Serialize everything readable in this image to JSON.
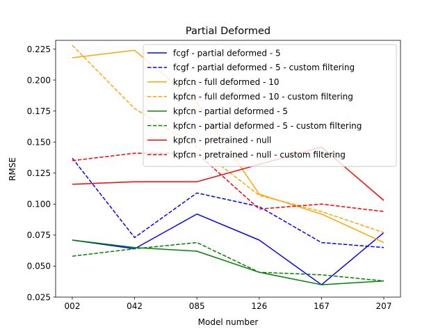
{
  "chart_data": {
    "type": "line",
    "title": "Partial Deformed",
    "xlabel": "Model number",
    "ylabel": "RMSE",
    "categories": [
      "002",
      "042",
      "085",
      "126",
      "167",
      "207"
    ],
    "ylim": [
      0.025,
      0.232
    ],
    "yticks": [
      0.025,
      0.05,
      0.075,
      0.1,
      0.125,
      0.15,
      0.175,
      0.2,
      0.225
    ],
    "ytick_labels": [
      "0.025",
      "0.050",
      "0.075",
      "0.100",
      "0.125",
      "0.150",
      "0.175",
      "0.200",
      "0.225"
    ],
    "grid": false,
    "legend_position": "top-right",
    "series": [
      {
        "name": "fcgf - partial deformed - 5",
        "color": "#0000ff",
        "style": "solid",
        "values": [
          0.071,
          0.064,
          0.092,
          0.071,
          0.035,
          0.077
        ]
      },
      {
        "name": "fcgf - partial deformed - 5 - custom filtering",
        "color": "#0000ff",
        "style": "dashed",
        "values": [
          0.137,
          0.073,
          0.109,
          0.098,
          0.069,
          0.065
        ]
      },
      {
        "name": "kpfcn - full deformed - 10",
        "color": "#ffa500",
        "style": "solid",
        "values": [
          0.218,
          0.224,
          0.182,
          0.108,
          0.092,
          0.069
        ]
      },
      {
        "name": "kpfcn - full deformed - 10 - custom filtering",
        "color": "#ffa500",
        "style": "dashed",
        "values": [
          0.228,
          0.177,
          0.146,
          0.107,
          0.094,
          0.077
        ]
      },
      {
        "name": "kpfcn - partial deformed - 5",
        "color": "#008000",
        "style": "solid",
        "values": [
          0.071,
          0.065,
          0.062,
          0.045,
          0.035,
          0.038
        ]
      },
      {
        "name": "kpfcn - partial deformed - 5 - custom filtering",
        "color": "#008000",
        "style": "dashed",
        "values": [
          0.058,
          0.064,
          0.069,
          0.045,
          0.043,
          0.038
        ]
      },
      {
        "name": "kpfcn - pretrained - null",
        "color": "#ff0000",
        "style": "solid",
        "values": [
          0.116,
          0.118,
          0.118,
          0.132,
          0.146,
          0.103
        ]
      },
      {
        "name": "kpfcn - pretrained - null - custom filtering",
        "color": "#ff0000",
        "style": "dashed",
        "values": [
          0.135,
          0.141,
          0.141,
          0.096,
          0.1,
          0.094
        ]
      }
    ]
  }
}
